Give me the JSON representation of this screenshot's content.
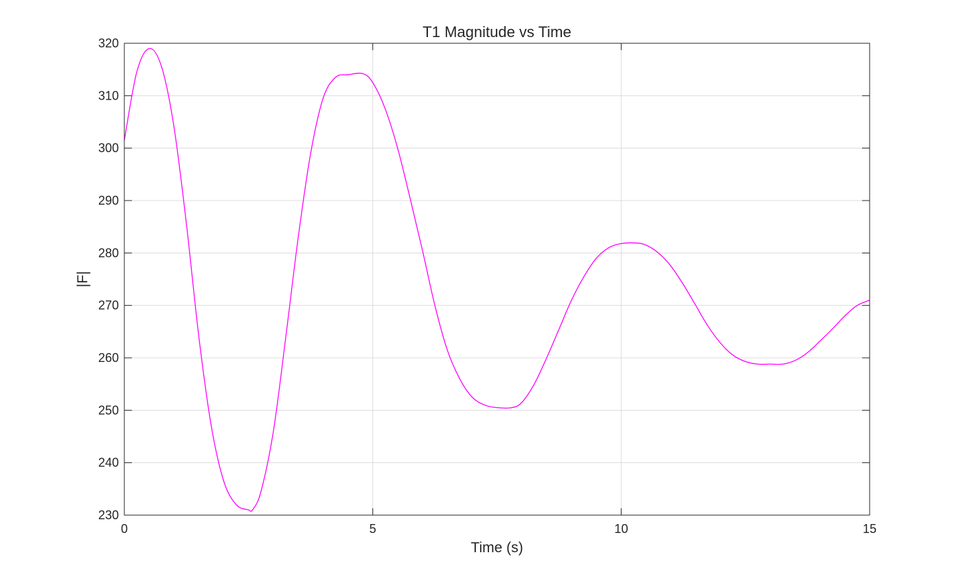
{
  "chart_data": {
    "type": "line",
    "title": "T1 Magnitude vs Time",
    "xlabel": "Time (s)",
    "ylabel": "|F|",
    "xlim": [
      0,
      15
    ],
    "ylim": [
      230,
      320
    ],
    "xticks": [
      0,
      5,
      10,
      15
    ],
    "yticks": [
      230,
      240,
      250,
      260,
      270,
      280,
      290,
      300,
      310,
      320
    ],
    "xtick_labels": [
      "0",
      "5",
      "10",
      "15"
    ],
    "ytick_labels": [
      "230",
      "240",
      "250",
      "260",
      "270",
      "280",
      "290",
      "300",
      "310",
      "320"
    ],
    "grid": true,
    "box": true,
    "series": [
      {
        "color": "#ff00ff",
        "x": [
          0,
          0.25,
          0.5,
          0.75,
          1.0,
          1.25,
          1.5,
          1.75,
          2.0,
          2.25,
          2.5,
          2.58,
          2.75,
          3.0,
          3.25,
          3.5,
          3.75,
          4.0,
          4.25,
          4.5,
          4.8,
          5.0,
          5.25,
          5.5,
          5.75,
          6.0,
          6.25,
          6.5,
          6.75,
          7.0,
          7.25,
          7.5,
          7.8,
          8.0,
          8.25,
          8.5,
          8.75,
          9.0,
          9.25,
          9.5,
          9.75,
          10.0,
          10.3,
          10.5,
          10.75,
          11.0,
          11.25,
          11.5,
          11.75,
          12.0,
          12.25,
          12.5,
          12.75,
          13.0,
          13.25,
          13.5,
          13.75,
          14.0,
          14.25,
          14.5,
          14.75,
          15.0
        ],
        "y": [
          301.5,
          314.5,
          319.0,
          315.5,
          304.0,
          285.5,
          264.0,
          247.0,
          236.5,
          232.0,
          231.0,
          231.0,
          234.5,
          246.0,
          264.0,
          283.0,
          299.0,
          309.5,
          313.5,
          314.0,
          314.2,
          312.5,
          307.5,
          300.0,
          290.5,
          280.5,
          270.0,
          261.5,
          256.0,
          252.5,
          251.0,
          250.5,
          250.5,
          251.5,
          255.0,
          260.0,
          265.5,
          271.0,
          275.5,
          279.0,
          281.0,
          281.8,
          281.9,
          281.5,
          280.0,
          277.5,
          274.0,
          270.0,
          266.0,
          262.8,
          260.5,
          259.3,
          258.8,
          258.8,
          258.8,
          259.5,
          261.0,
          263.2,
          265.5,
          268.0,
          270.0,
          271.0
        ]
      }
    ]
  }
}
